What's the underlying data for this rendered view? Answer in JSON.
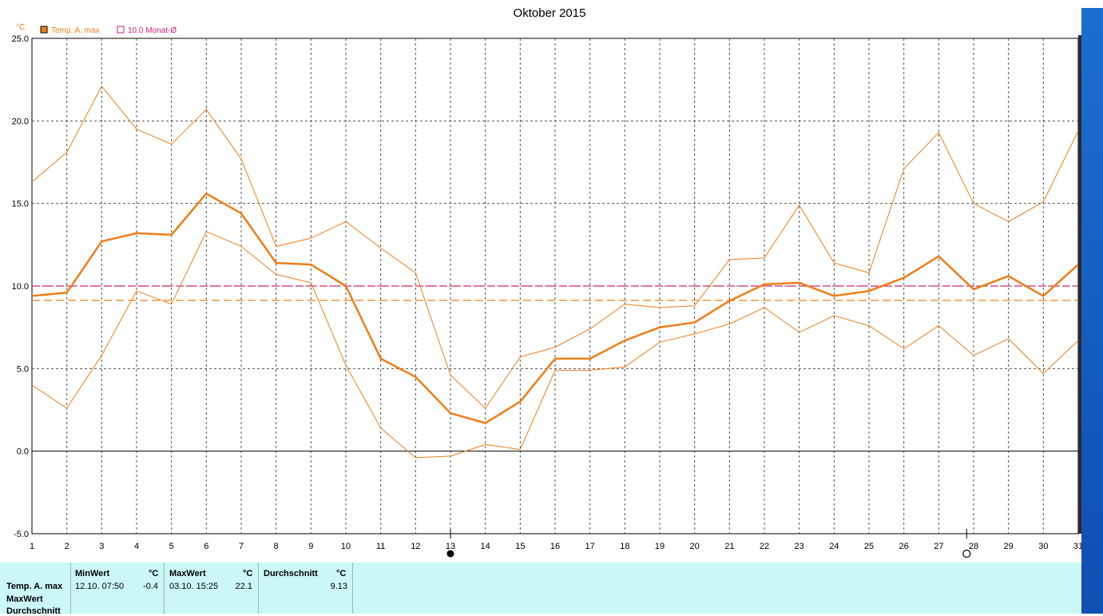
{
  "chart_data": {
    "type": "line",
    "title": "Oktober 2015",
    "yunit": "°C",
    "ylim": [
      -5.0,
      25.0
    ],
    "yticks": [
      "25.0",
      "20.0",
      "15.0",
      "10.0",
      "5.0",
      "0.0",
      "-5.0"
    ],
    "yticks_values": [
      25,
      20,
      15,
      10,
      5,
      0,
      -5
    ],
    "xlim": [
      1,
      31
    ],
    "x": [
      1,
      2,
      3,
      4,
      5,
      6,
      7,
      8,
      9,
      10,
      11,
      12,
      13,
      14,
      15,
      16,
      17,
      18,
      19,
      20,
      21,
      22,
      23,
      24,
      25,
      26,
      27,
      28,
      29,
      30,
      31
    ],
    "legend": [
      {
        "name": "Temp. A. max",
        "color": "#f07f1a"
      },
      {
        "name": "10.0 Monat-Ø",
        "color": "#d6227a"
      }
    ],
    "series": [
      {
        "name": "Temp. A. max",
        "role": "mean",
        "values": [
          9.4,
          9.6,
          12.7,
          13.2,
          13.1,
          15.6,
          14.4,
          11.4,
          11.3,
          10.0,
          5.6,
          4.5,
          2.3,
          1.7,
          3.0,
          5.6,
          5.6,
          6.7,
          7.5,
          7.8,
          9.1,
          10.1,
          10.2,
          9.4,
          9.7,
          10.5,
          11.8,
          9.8,
          10.6,
          9.4,
          11.3
        ]
      },
      {
        "role": "max",
        "values": [
          16.3,
          18.1,
          22.1,
          19.5,
          18.6,
          20.7,
          17.7,
          12.4,
          12.9,
          13.9,
          12.3,
          10.8,
          4.6,
          2.6,
          5.7,
          6.3,
          7.4,
          8.9,
          8.7,
          8.8,
          11.6,
          11.7,
          14.9,
          11.4,
          10.8,
          17.1,
          19.3,
          15.0,
          13.9,
          15.1,
          19.4
        ]
      },
      {
        "role": "min",
        "values": [
          4.0,
          2.6,
          5.8,
          9.7,
          8.9,
          13.3,
          12.4,
          10.7,
          10.2,
          5.2,
          1.4,
          -0.4,
          -0.3,
          0.4,
          0.1,
          4.9,
          4.9,
          5.1,
          6.6,
          7.1,
          7.7,
          8.7,
          7.2,
          8.2,
          7.6,
          6.2,
          7.6,
          5.8,
          6.8,
          4.7,
          6.7
        ]
      }
    ],
    "reference_lines": [
      {
        "name": "10.0 Monat-Ø",
        "value": 10.0,
        "color": "#d6227a"
      },
      {
        "name": "Durchschnitt",
        "value": 9.13,
        "color": "#f07f1a"
      }
    ],
    "moon_phases": [
      {
        "day": 13,
        "phase": "new"
      },
      {
        "day": 27.8,
        "phase": "full"
      }
    ],
    "grid": true,
    "legend_position": "top-left"
  },
  "stats_table": {
    "row_labels": [
      "Temp. A. max",
      "MaxWert",
      "Durchschnitt"
    ],
    "min": {
      "header": "MinWert",
      "unit": "°C",
      "timestamp": "12.10.  07:50",
      "value": "-0.4"
    },
    "max": {
      "header": "MaxWert",
      "unit": "°C",
      "timestamp": "03.10.  15:25",
      "value": "22.1"
    },
    "avg": {
      "header": "Durchschnitt",
      "unit": "°C",
      "value": "9.13"
    }
  }
}
